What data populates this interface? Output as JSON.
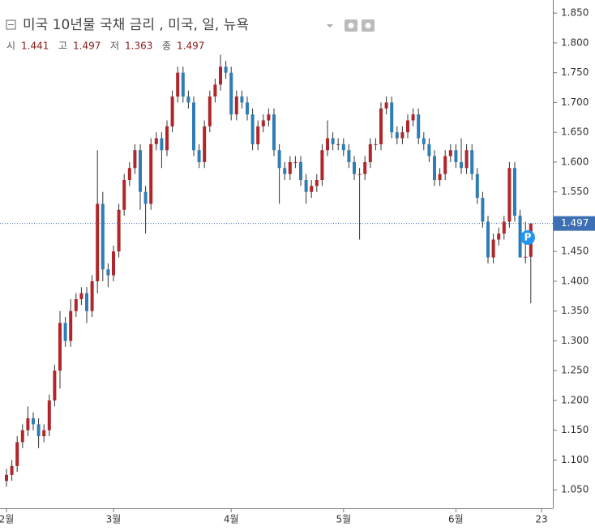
{
  "chart_data": {
    "type": "candlestick",
    "title": "미국 10년물 국채 금리 , 미국, 일, 뉴욕",
    "header": {
      "open_label": "시",
      "open": 1.441,
      "high_label": "고",
      "high": 1.497,
      "low_label": "저",
      "low": 1.363,
      "close_label": "종",
      "close": 1.497
    },
    "last_price": 1.497,
    "up_color": "#b0262a",
    "down_color": "#2f7db6",
    "ylim": [
      1.019,
      1.872
    ],
    "yticks": [
      {
        "value": 1.05,
        "label": "1.050"
      },
      {
        "value": 1.1,
        "label": "1.100"
      },
      {
        "value": 1.15,
        "label": "1.150"
      },
      {
        "value": 1.2,
        "label": "1.200"
      },
      {
        "value": 1.25,
        "label": "1.250"
      },
      {
        "value": 1.3,
        "label": "1.300"
      },
      {
        "value": 1.35,
        "label": "1.350"
      },
      {
        "value": 1.4,
        "label": "1.400"
      },
      {
        "value": 1.45,
        "label": "1.450"
      },
      {
        "value": 1.5,
        "label": "1.500"
      },
      {
        "value": 1.55,
        "label": "1.550"
      },
      {
        "value": 1.6,
        "label": "1.600"
      },
      {
        "value": 1.65,
        "label": "1.650"
      },
      {
        "value": 1.7,
        "label": "1.700"
      },
      {
        "value": 1.75,
        "label": "1.750"
      },
      {
        "value": 1.8,
        "label": "1.800"
      },
      {
        "value": 1.85,
        "label": "1.850"
      }
    ],
    "xticks": [
      {
        "index": 0,
        "label": "2월"
      },
      {
        "index": 20,
        "label": "3월"
      },
      {
        "index": 42,
        "label": "4월"
      },
      {
        "index": 63,
        "label": "5월"
      },
      {
        "index": 84,
        "label": "6월"
      },
      {
        "index": 100,
        "label": "23"
      }
    ],
    "ohlc": [
      [
        1.065,
        1.085,
        1.055,
        1.075
      ],
      [
        1.075,
        1.1,
        1.065,
        1.09
      ],
      [
        1.09,
        1.14,
        1.08,
        1.13
      ],
      [
        1.13,
        1.16,
        1.12,
        1.15
      ],
      [
        1.15,
        1.19,
        1.14,
        1.17
      ],
      [
        1.17,
        1.18,
        1.15,
        1.16
      ],
      [
        1.16,
        1.17,
        1.12,
        1.14
      ],
      [
        1.14,
        1.16,
        1.13,
        1.15
      ],
      [
        1.15,
        1.21,
        1.14,
        1.2
      ],
      [
        1.2,
        1.26,
        1.19,
        1.25
      ],
      [
        1.25,
        1.35,
        1.22,
        1.33
      ],
      [
        1.33,
        1.34,
        1.29,
        1.3
      ],
      [
        1.3,
        1.37,
        1.29,
        1.35
      ],
      [
        1.35,
        1.38,
        1.34,
        1.37
      ],
      [
        1.37,
        1.39,
        1.36,
        1.38
      ],
      [
        1.38,
        1.39,
        1.33,
        1.35
      ],
      [
        1.35,
        1.41,
        1.34,
        1.4
      ],
      [
        1.4,
        1.62,
        1.38,
        1.53
      ],
      [
        1.53,
        1.55,
        1.4,
        1.42
      ],
      [
        1.42,
        1.43,
        1.39,
        1.41
      ],
      [
        1.41,
        1.46,
        1.4,
        1.45
      ],
      [
        1.45,
        1.53,
        1.44,
        1.52
      ],
      [
        1.52,
        1.58,
        1.51,
        1.57
      ],
      [
        1.57,
        1.6,
        1.56,
        1.59
      ],
      [
        1.59,
        1.63,
        1.58,
        1.62
      ],
      [
        1.62,
        1.63,
        1.52,
        1.55
      ],
      [
        1.55,
        1.56,
        1.48,
        1.53
      ],
      [
        1.53,
        1.64,
        1.52,
        1.63
      ],
      [
        1.63,
        1.65,
        1.62,
        1.64
      ],
      [
        1.64,
        1.65,
        1.59,
        1.62
      ],
      [
        1.62,
        1.67,
        1.61,
        1.66
      ],
      [
        1.66,
        1.72,
        1.65,
        1.71
      ],
      [
        1.71,
        1.76,
        1.7,
        1.75
      ],
      [
        1.75,
        1.76,
        1.7,
        1.71
      ],
      [
        1.71,
        1.72,
        1.69,
        1.7
      ],
      [
        1.7,
        1.71,
        1.61,
        1.62
      ],
      [
        1.62,
        1.63,
        1.59,
        1.6
      ],
      [
        1.6,
        1.67,
        1.59,
        1.66
      ],
      [
        1.66,
        1.72,
        1.65,
        1.71
      ],
      [
        1.71,
        1.74,
        1.7,
        1.73
      ],
      [
        1.73,
        1.78,
        1.72,
        1.76
      ],
      [
        1.76,
        1.77,
        1.74,
        1.75
      ],
      [
        1.75,
        1.76,
        1.67,
        1.68
      ],
      [
        1.68,
        1.72,
        1.67,
        1.71
      ],
      [
        1.71,
        1.72,
        1.69,
        1.7
      ],
      [
        1.7,
        1.71,
        1.67,
        1.68
      ],
      [
        1.68,
        1.69,
        1.62,
        1.63
      ],
      [
        1.63,
        1.67,
        1.62,
        1.66
      ],
      [
        1.66,
        1.68,
        1.65,
        1.67
      ],
      [
        1.67,
        1.69,
        1.66,
        1.68
      ],
      [
        1.68,
        1.69,
        1.61,
        1.62
      ],
      [
        1.62,
        1.63,
        1.53,
        1.59
      ],
      [
        1.59,
        1.6,
        1.57,
        1.58
      ],
      [
        1.58,
        1.61,
        1.57,
        1.6
      ],
      [
        1.6,
        1.61,
        1.59,
        1.6
      ],
      [
        1.6,
        1.61,
        1.56,
        1.57
      ],
      [
        1.57,
        1.58,
        1.53,
        1.55
      ],
      [
        1.55,
        1.57,
        1.54,
        1.56
      ],
      [
        1.56,
        1.58,
        1.55,
        1.57
      ],
      [
        1.57,
        1.63,
        1.56,
        1.62
      ],
      [
        1.62,
        1.67,
        1.61,
        1.64
      ],
      [
        1.64,
        1.65,
        1.62,
        1.63
      ],
      [
        1.63,
        1.64,
        1.62,
        1.63
      ],
      [
        1.63,
        1.64,
        1.61,
        1.62
      ],
      [
        1.62,
        1.63,
        1.59,
        1.6
      ],
      [
        1.6,
        1.61,
        1.57,
        1.58
      ],
      [
        1.58,
        1.59,
        1.47,
        1.58
      ],
      [
        1.58,
        1.61,
        1.57,
        1.6
      ],
      [
        1.6,
        1.64,
        1.59,
        1.63
      ],
      [
        1.63,
        1.64,
        1.62,
        1.63
      ],
      [
        1.63,
        1.7,
        1.62,
        1.69
      ],
      [
        1.69,
        1.71,
        1.68,
        1.7
      ],
      [
        1.7,
        1.71,
        1.64,
        1.65
      ],
      [
        1.65,
        1.66,
        1.63,
        1.64
      ],
      [
        1.64,
        1.66,
        1.63,
        1.65
      ],
      [
        1.65,
        1.68,
        1.64,
        1.67
      ],
      [
        1.67,
        1.69,
        1.66,
        1.68
      ],
      [
        1.68,
        1.69,
        1.63,
        1.64
      ],
      [
        1.64,
        1.65,
        1.62,
        1.63
      ],
      [
        1.63,
        1.64,
        1.6,
        1.61
      ],
      [
        1.61,
        1.62,
        1.56,
        1.57
      ],
      [
        1.57,
        1.59,
        1.56,
        1.58
      ],
      [
        1.58,
        1.62,
        1.57,
        1.61
      ],
      [
        1.61,
        1.63,
        1.6,
        1.62
      ],
      [
        1.62,
        1.63,
        1.59,
        1.6
      ],
      [
        1.6,
        1.64,
        1.58,
        1.59
      ],
      [
        1.59,
        1.63,
        1.58,
        1.62
      ],
      [
        1.62,
        1.63,
        1.57,
        1.58
      ],
      [
        1.58,
        1.59,
        1.53,
        1.54
      ],
      [
        1.54,
        1.55,
        1.49,
        1.5
      ],
      [
        1.5,
        1.51,
        1.43,
        1.44
      ],
      [
        1.44,
        1.48,
        1.43,
        1.47
      ],
      [
        1.47,
        1.49,
        1.46,
        1.48
      ],
      [
        1.48,
        1.51,
        1.47,
        1.5
      ],
      [
        1.5,
        1.6,
        1.49,
        1.59
      ],
      [
        1.59,
        1.6,
        1.5,
        1.51
      ],
      [
        1.51,
        1.52,
        1.44,
        1.44
      ],
      [
        1.44,
        1.5,
        1.43,
        1.441
      ],
      [
        1.441,
        1.497,
        1.363,
        1.497
      ]
    ]
  }
}
